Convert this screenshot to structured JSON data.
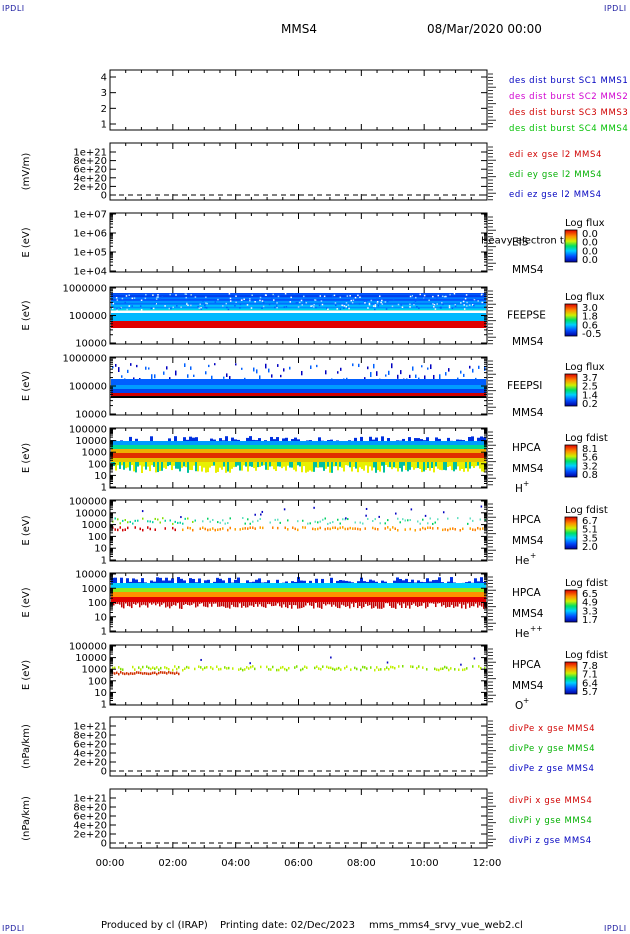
{
  "header": {
    "corner_tl": "IPDLI",
    "corner_tr": "IPDLI",
    "corner_bl": "IPDLI",
    "corner_br": "IPDLI",
    "spacecraft": "MMS4",
    "datetime": "08/Mar/2020 00:00"
  },
  "footer": {
    "produced": "Produced by cl (IRAP)",
    "printing": "Printing date: 02/Dec/2023",
    "file": "mms_mms4_srvy_vue_web2.cl"
  },
  "colors": {
    "mms1": "#0000c0",
    "mms2": "#d000d0",
    "mms3": "#d00000",
    "mms4": "#00c000",
    "x": "#d00000",
    "y": "#00b000",
    "z": "#0000c0"
  },
  "chart_data": [
    {
      "id": "p1",
      "type": "line",
      "ylabel": "",
      "yticks": [
        "1",
        "2",
        "3",
        "4"
      ],
      "legend": [
        {
          "label": "des dist burst SC1 MMS1",
          "color": "#0000c0"
        },
        {
          "label": "des dist burst SC2 MMS2",
          "color": "#d000d0"
        },
        {
          "label": "des dist burst SC3 MMS3",
          "color": "#d00000"
        },
        {
          "label": "des dist burst SC4 MMS4",
          "color": "#00c000"
        }
      ],
      "series": [],
      "dashed_zero": false
    },
    {
      "id": "p2",
      "type": "line",
      "ylabel": "(mV/m)",
      "yticks": [
        "0",
        "2e+20",
        "4e+20",
        "6e+20",
        "8e+20",
        "1e+21"
      ],
      "legend": [
        {
          "label": "edi ex gse l2 MMS4",
          "color": "#d00000"
        },
        {
          "label": "edi ey gse l2 MMS4",
          "color": "#00b000"
        },
        {
          "label": "edi ez gse l2 MMS4",
          "color": "#0000c0"
        }
      ],
      "series": [],
      "dashed_zero": true
    },
    {
      "id": "p3",
      "type": "heatmap",
      "ylabel": "E (eV)",
      "yticks": [
        "1e+04",
        "1e+05",
        "1e+06",
        "1e+07"
      ],
      "instrument": "EIS",
      "overlay": "Heavy electron to",
      "sc": "MMS4",
      "species": "",
      "cb_title": "Log flux",
      "cb_ticks": [
        "0.0",
        "0.0",
        "0.0",
        "0.0"
      ],
      "band": null
    },
    {
      "id": "p4",
      "type": "heatmap",
      "ylabel": "E (eV)",
      "yticks": [
        "10000",
        "100000",
        "1000000"
      ],
      "instrument": "FEEPSE",
      "sc": "MMS4",
      "species": "",
      "cb_title": "Log flux",
      "cb_ticks": [
        "3.0",
        "1.8",
        "0.6",
        "-0.5"
      ],
      "band": {
        "kind": "feepse"
      }
    },
    {
      "id": "p5",
      "type": "heatmap",
      "ylabel": "E (eV)",
      "yticks": [
        "10000",
        "100000",
        "1000000"
      ],
      "instrument": "FEEPSI",
      "sc": "MMS4",
      "species": "",
      "cb_title": "Log flux",
      "cb_ticks": [
        "3.7",
        "2.5",
        "1.4",
        "0.2"
      ],
      "band": {
        "kind": "feepsi"
      }
    },
    {
      "id": "p6",
      "type": "heatmap",
      "ylabel": "E (eV)",
      "yticks": [
        "1",
        "10",
        "100",
        "1000",
        "10000",
        "100000"
      ],
      "instrument": "HPCA",
      "sc": "MMS4",
      "species": "H",
      "species_sup": "+",
      "cb_title": "Log fdist",
      "cb_ticks": [
        "8.1",
        "5.6",
        "3.2",
        "0.8"
      ],
      "band": {
        "kind": "hplus"
      }
    },
    {
      "id": "p7",
      "type": "heatmap",
      "ylabel": "E (eV)",
      "yticks": [
        "1",
        "10",
        "100",
        "1000",
        "10000",
        "100000"
      ],
      "instrument": "HPCA",
      "sc": "MMS4",
      "species": "He",
      "species_sup": "+",
      "cb_title": "Log fdist",
      "cb_ticks": [
        "6.7",
        "5.1",
        "3.5",
        "2.0"
      ],
      "band": {
        "kind": "heplus"
      }
    },
    {
      "id": "p8",
      "type": "heatmap",
      "ylabel": "E (eV)",
      "yticks": [
        "1",
        "10",
        "100",
        "1000",
        "10000"
      ],
      "instrument": "HPCA",
      "sc": "MMS4",
      "species": "He",
      "species_sup": "++",
      "cb_title": "Log fdist",
      "cb_ticks": [
        "6.5",
        "4.9",
        "3.3",
        "1.7"
      ],
      "band": {
        "kind": "heplusplus"
      }
    },
    {
      "id": "p9",
      "type": "heatmap",
      "ylabel": "E (eV)",
      "yticks": [
        "1",
        "10",
        "100",
        "1000",
        "10000",
        "100000"
      ],
      "instrument": "HPCA",
      "sc": "MMS4",
      "species": "O",
      "species_sup": "+",
      "cb_title": "Log fdist",
      "cb_ticks": [
        "7.8",
        "7.1",
        "6.4",
        "5.7"
      ],
      "band": {
        "kind": "oplus"
      }
    },
    {
      "id": "p10",
      "type": "line",
      "ylabel": "(nPa/km)",
      "yticks": [
        "0",
        "2e+20",
        "4e+20",
        "6e+20",
        "8e+20",
        "1e+21"
      ],
      "legend": [
        {
          "label": "divPe x gse MMS4",
          "color": "#d00000"
        },
        {
          "label": "divPe y gse MMS4",
          "color": "#00b000"
        },
        {
          "label": "divPe z gse MMS4",
          "color": "#0000c0"
        }
      ],
      "series": [],
      "dashed_zero": true
    },
    {
      "id": "p11",
      "type": "line",
      "ylabel": "(nPa/km)",
      "yticks": [
        "0",
        "2e+20",
        "4e+20",
        "6e+20",
        "8e+20",
        "1e+21"
      ],
      "legend": [
        {
          "label": "divPi x gse MMS4",
          "color": "#d00000"
        },
        {
          "label": "divPi y gse MMS4",
          "color": "#00b000"
        },
        {
          "label": "divPi z gse MMS4",
          "color": "#0000c0"
        }
      ],
      "series": [],
      "dashed_zero": true
    }
  ],
  "xaxis": {
    "ticks": [
      "00:00",
      "02:00",
      "04:00",
      "06:00",
      "08:00",
      "10:00",
      "12:00"
    ],
    "range": [
      "00:00",
      "12:00"
    ]
  }
}
